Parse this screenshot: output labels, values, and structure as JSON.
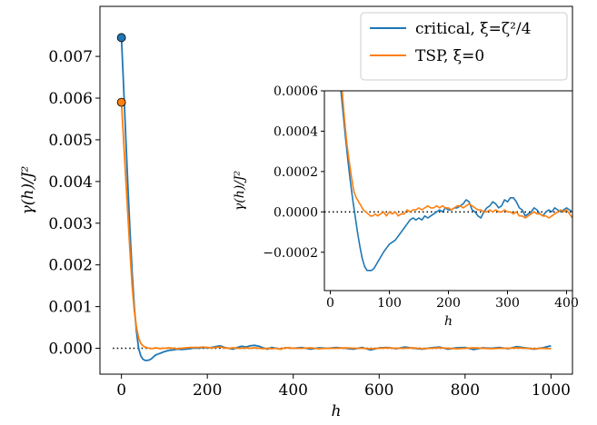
{
  "chart_data": [
    {
      "type": "line",
      "panel": "main",
      "xlabel": "h",
      "ylabel": "γ(h)/J²",
      "xlim": [
        -50,
        1050
      ],
      "ylim": [
        -0.00062,
        0.0082
      ],
      "xticks": [
        "0",
        "200",
        "400",
        "600",
        "800",
        "1000"
      ],
      "yticks": [
        "0.000",
        "0.001",
        "0.002",
        "0.003",
        "0.004",
        "0.005",
        "0.006",
        "0.007"
      ],
      "legend": {
        "placement": "top-right",
        "entries": [
          "critical, ξ=ζ²/4",
          "TSP, ξ=0"
        ]
      },
      "reference_line": {
        "y": 0,
        "style": "dotted",
        "x_range": [
          -20,
          1000
        ]
      },
      "series": [
        {
          "name": "critical, ξ=ζ²/4",
          "color": "#1f77b4",
          "marker_at_start": true,
          "x": [
            0,
            5,
            10,
            15,
            20,
            25,
            30,
            35,
            40,
            45,
            50,
            55,
            60,
            65,
            70,
            75,
            80,
            85,
            90,
            95,
            100,
            110,
            120,
            130,
            140,
            150,
            160,
            170,
            180,
            190,
            200,
            210,
            220,
            230,
            240,
            250,
            260,
            270,
            280,
            290,
            300,
            310,
            320,
            330,
            340,
            350,
            360,
            370,
            380,
            390,
            400,
            420,
            440,
            460,
            480,
            500,
            520,
            540,
            560,
            580,
            600,
            620,
            640,
            660,
            680,
            700,
            720,
            740,
            760,
            780,
            800,
            820,
            840,
            860,
            880,
            900,
            920,
            940,
            960,
            980,
            1000
          ],
          "y": [
            0.00745,
            0.0063,
            0.0051,
            0.0039,
            0.0028,
            0.0018,
            0.001,
            0.0004,
            0.0,
            -0.00018,
            -0.00026,
            -0.00029,
            -0.00029,
            -0.00028,
            -0.00025,
            -0.0002,
            -0.00016,
            -0.00014,
            -0.00012,
            -0.0001,
            -8e-05,
            -5e-05,
            -4e-05,
            -2e-05,
            -3e-05,
            -2e-05,
            -1e-05,
            1e-05,
            0.0,
            2e-05,
            1e-05,
            2e-05,
            4e-05,
            6e-05,
            2e-05,
            0.0,
            -2e-05,
            2e-05,
            5e-05,
            3e-05,
            6e-05,
            7e-05,
            5e-05,
            1e-05,
            -2e-05,
            2e-05,
            0.0,
            -2e-05,
            1e-05,
            1e-05,
            0.0,
            2e-05,
            -2e-05,
            1e-05,
            0.0,
            2e-05,
            0.0,
            -2e-05,
            2e-05,
            -4e-05,
            1e-05,
            2e-05,
            -1e-05,
            3e-05,
            0.0,
            -2e-05,
            1e-05,
            3e-05,
            -2e-05,
            1e-05,
            2e-05,
            -3e-05,
            1e-05,
            0.0,
            2e-05,
            -1e-05,
            4e-05,
            1e-05,
            -2e-05,
            1e-05,
            6e-05
          ]
        },
        {
          "name": "TSP, ξ=0",
          "color": "#ff7f0e",
          "marker_at_start": true,
          "x": [
            0,
            5,
            10,
            15,
            20,
            25,
            30,
            35,
            40,
            45,
            50,
            55,
            60,
            65,
            70,
            75,
            80,
            85,
            90,
            95,
            100,
            110,
            120,
            130,
            140,
            150,
            160,
            170,
            180,
            190,
            200,
            210,
            220,
            230,
            240,
            250,
            260,
            270,
            280,
            290,
            300,
            310,
            320,
            330,
            340,
            350,
            360,
            370,
            380,
            390,
            400,
            420,
            440,
            460,
            480,
            500,
            520,
            540,
            560,
            580,
            600,
            620,
            640,
            660,
            680,
            700,
            720,
            740,
            760,
            780,
            800,
            820,
            840,
            860,
            880,
            900,
            920,
            940,
            960,
            980,
            1000
          ],
          "y": [
            0.0059,
            0.005,
            0.0041,
            0.0032,
            0.0023,
            0.0015,
            0.0009,
            0.0005,
            0.00025,
            0.00012,
            6e-05,
            3e-05,
            1e-05,
            0.0,
            -1e-05,
            0.0,
            1e-05,
            0.0,
            -1e-05,
            0.0,
            0.0,
            1e-05,
            0.0,
            -1e-05,
            0.0,
            1e-05,
            2e-05,
            2e-05,
            2e-05,
            3e-05,
            2e-05,
            1e-05,
            2e-05,
            3e-05,
            1e-05,
            0.0,
            1e-05,
            0.0,
            0.0,
            1e-05,
            0.0,
            1e-05,
            0.0,
            -1e-05,
            0.0,
            -1e-05,
            0.0,
            -2e-05,
            1e-05,
            1e-05,
            0.0,
            0.0,
            1e-05,
            -1e-05,
            0.0,
            0.0,
            1e-05,
            0.0,
            0.0,
            -1e-05,
            0.0,
            1e-05,
            0.0,
            0.0,
            1e-05,
            -1e-05,
            0.0,
            1e-05,
            0.0,
            -1e-05,
            0.0,
            1e-05,
            0.0,
            -1e-05,
            0.0,
            0.0,
            1e-05,
            0.0,
            -1e-05,
            0.0,
            -1e-05
          ]
        }
      ]
    },
    {
      "type": "line",
      "panel": "inset",
      "xlabel": "h",
      "ylabel": "γ(h)/J²",
      "xlim": [
        -10,
        410
      ],
      "ylim": [
        -0.00039,
        0.0006
      ],
      "xticks": [
        "0",
        "100",
        "200",
        "300",
        "400"
      ],
      "yticks": [
        "−0.0002",
        "0.0000",
        "0.0002",
        "0.0004",
        "0.0006"
      ],
      "reference_line": {
        "y": 0,
        "style": "dotted",
        "x_range": [
          -10,
          410
        ]
      },
      "series": [
        {
          "name": "critical, ξ=ζ²/4",
          "color": "#1f77b4",
          "x": [
            18,
            22,
            26,
            30,
            34,
            38,
            42,
            46,
            50,
            54,
            58,
            62,
            66,
            70,
            74,
            78,
            82,
            86,
            90,
            95,
            100,
            105,
            110,
            115,
            120,
            125,
            130,
            135,
            140,
            145,
            150,
            155,
            160,
            165,
            170,
            175,
            180,
            185,
            190,
            195,
            200,
            205,
            210,
            215,
            220,
            225,
            230,
            235,
            240,
            245,
            250,
            255,
            260,
            265,
            270,
            275,
            280,
            285,
            290,
            295,
            300,
            305,
            310,
            315,
            320,
            325,
            330,
            335,
            340,
            345,
            350,
            355,
            360,
            365,
            370,
            375,
            380,
            385,
            390,
            395,
            400,
            405,
            410
          ],
          "y": [
            0.0006,
            0.00048,
            0.00036,
            0.00025,
            0.00015,
            6e-05,
            -2e-05,
            -0.0001,
            -0.00017,
            -0.00023,
            -0.00027,
            -0.00029,
            -0.00029,
            -0.00029,
            -0.00028,
            -0.00026,
            -0.00024,
            -0.00022,
            -0.0002,
            -0.00018,
            -0.00016,
            -0.00015,
            -0.00014,
            -0.00012,
            -0.0001,
            -8e-05,
            -6e-05,
            -4e-05,
            -3e-05,
            -4e-05,
            -3e-05,
            -4e-05,
            -2e-05,
            -3e-05,
            -2e-05,
            -1e-05,
            0.0,
            1e-05,
            0.0,
            2e-05,
            1e-05,
            1e-05,
            2e-05,
            2e-05,
            3e-05,
            4e-05,
            6e-05,
            5e-05,
            1e-05,
            0.0,
            -2e-05,
            -3e-05,
            0.0,
            2e-05,
            3e-05,
            5e-05,
            4e-05,
            2e-05,
            3e-05,
            6e-05,
            5e-05,
            7e-05,
            7e-05,
            5e-05,
            2e-05,
            1e-05,
            -2e-05,
            -1e-05,
            0.0,
            2e-05,
            1e-05,
            -1e-05,
            -2e-05,
            0.0,
            1e-05,
            0.0,
            2e-05,
            1e-05,
            0.0,
            1e-05,
            2e-05,
            1e-05,
            0.0
          ]
        },
        {
          "name": "TSP, ξ=0",
          "color": "#ff7f0e",
          "x": [
            20,
            24,
            28,
            32,
            36,
            40,
            44,
            48,
            52,
            56,
            60,
            64,
            68,
            72,
            76,
            80,
            85,
            90,
            95,
            100,
            105,
            110,
            115,
            120,
            125,
            130,
            135,
            140,
            145,
            150,
            155,
            160,
            165,
            170,
            175,
            180,
            185,
            190,
            195,
            200,
            205,
            210,
            215,
            220,
            225,
            230,
            235,
            240,
            245,
            250,
            255,
            260,
            265,
            270,
            275,
            280,
            285,
            290,
            295,
            300,
            305,
            310,
            315,
            320,
            325,
            330,
            335,
            340,
            345,
            350,
            355,
            360,
            365,
            370,
            375,
            380,
            385,
            390,
            395,
            400,
            405,
            410
          ],
          "y": [
            0.0006,
            0.00046,
            0.00034,
            0.00025,
            0.00017,
            0.0001,
            7e-05,
            5e-05,
            3e-05,
            1e-05,
            0.0,
            -1e-05,
            -2e-05,
            -2e-05,
            -1e-05,
            -2e-05,
            -1e-05,
            0.0,
            -2e-05,
            0.0,
            -1e-05,
            0.0,
            -2e-05,
            -1e-05,
            -1e-05,
            1e-05,
            0.0,
            1e-05,
            1e-05,
            2e-05,
            1e-05,
            2e-05,
            3e-05,
            2e-05,
            2e-05,
            3e-05,
            2e-05,
            3e-05,
            2e-05,
            2e-05,
            1e-05,
            2e-05,
            3e-05,
            3e-05,
            2e-05,
            3e-05,
            4e-05,
            3e-05,
            2e-05,
            1e-05,
            1e-05,
            0.0,
            0.0,
            1e-05,
            0.0,
            1e-05,
            0.0,
            0.0,
            1e-05,
            0.0,
            0.0,
            -1e-05,
            0.0,
            -2e-05,
            -2e-05,
            -3e-05,
            -2e-05,
            -1e-05,
            0.0,
            -1e-05,
            -1e-05,
            -2e-05,
            -2e-05,
            -3e-05,
            -2e-05,
            -1e-05,
            0.0,
            1e-05,
            0.0,
            1e-05,
            -1e-05,
            -3e-05
          ]
        }
      ]
    }
  ]
}
